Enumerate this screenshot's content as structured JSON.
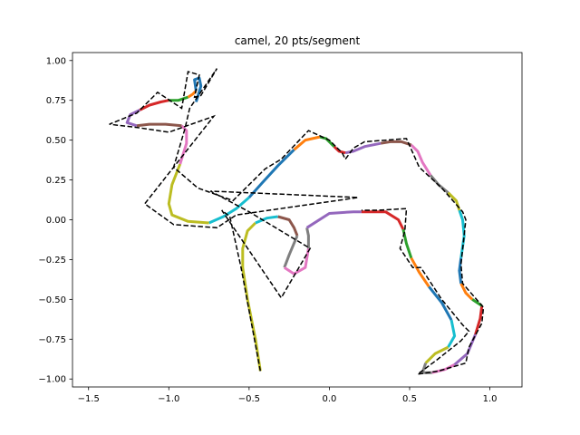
{
  "chart_data": {
    "type": "line",
    "title": "camel, 20 pts/segment",
    "xlabel": "",
    "ylabel": "",
    "xlim": [
      -1.6,
      1.2
    ],
    "ylim": [
      -1.05,
      1.05
    ],
    "x_ticks": [
      -1.5,
      -1.0,
      -0.5,
      0.0,
      0.5,
      1.0
    ],
    "x_tick_labels": [
      "−1.5",
      "−1.0",
      "−0.5",
      "0.0",
      "0.5",
      "1.0"
    ],
    "y_ticks": [
      -1.0,
      -0.75,
      -0.5,
      -0.25,
      0.0,
      0.25,
      0.5,
      0.75,
      1.0
    ],
    "y_tick_labels": [
      "−1.00",
      "−0.75",
      "−0.50",
      "−0.25",
      "0.00",
      "0.25",
      "0.50",
      "0.75",
      "1.00"
    ],
    "grid": false,
    "legend": "none",
    "palette": [
      "#1f77b4",
      "#ff7f0e",
      "#2ca02c",
      "#d62728",
      "#9467bd",
      "#8c564b",
      "#e377c2",
      "#7f7f7f",
      "#bcbd22",
      "#17becf"
    ],
    "control_polygon": {
      "style": "dashed",
      "color": "#000000",
      "points": [
        [
          -0.43,
          -0.95
        ],
        [
          -0.55,
          -0.3
        ],
        [
          -0.62,
          0.02
        ],
        [
          -0.67,
          0.06
        ],
        [
          -0.3,
          -0.49
        ],
        [
          -0.12,
          -0.18
        ],
        [
          -0.5,
          0.05
        ],
        [
          -0.74,
          0.18
        ],
        [
          0.18,
          0.14
        ],
        [
          -0.58,
          0.03
        ],
        [
          -0.7,
          -0.05
        ],
        [
          -0.97,
          -0.03
        ],
        [
          -1.15,
          0.1
        ],
        [
          -0.72,
          0.65
        ],
        [
          -1.0,
          0.55
        ],
        [
          -1.2,
          0.58
        ],
        [
          -1.37,
          0.6
        ],
        [
          -1.2,
          0.67
        ],
        [
          -1.07,
          0.8
        ],
        [
          -0.92,
          0.7
        ],
        [
          -0.88,
          0.93
        ],
        [
          -0.81,
          0.91
        ],
        [
          -0.84,
          0.77
        ],
        [
          -0.8,
          0.78
        ],
        [
          -0.7,
          0.95
        ],
        [
          -0.87,
          0.7
        ],
        [
          -0.9,
          0.57
        ],
        [
          -0.97,
          0.33
        ],
        [
          -0.82,
          0.2
        ],
        [
          -0.6,
          0.12
        ],
        [
          -0.4,
          0.32
        ],
        [
          -0.3,
          0.38
        ],
        [
          -0.13,
          0.56
        ],
        [
          0.0,
          0.5
        ],
        [
          0.08,
          0.42
        ],
        [
          0.1,
          0.38
        ],
        [
          0.15,
          0.45
        ],
        [
          0.22,
          0.49
        ],
        [
          0.48,
          0.51
        ],
        [
          0.56,
          0.33
        ],
        [
          0.7,
          0.2
        ],
        [
          0.83,
          0.05
        ],
        [
          0.85,
          0.0
        ],
        [
          0.82,
          -0.28
        ],
        [
          0.83,
          -0.4
        ],
        [
          0.96,
          -0.55
        ],
        [
          0.95,
          -0.65
        ],
        [
          0.87,
          -0.8
        ],
        [
          0.85,
          -0.9
        ],
        [
          0.68,
          -0.95
        ],
        [
          0.55,
          -0.97
        ],
        [
          0.67,
          -0.88
        ],
        [
          0.82,
          -0.76
        ],
        [
          0.87,
          -0.7
        ],
        [
          0.83,
          -0.66
        ],
        [
          0.7,
          -0.5
        ],
        [
          0.57,
          -0.3
        ],
        [
          0.52,
          -0.3
        ],
        [
          0.44,
          -0.18
        ],
        [
          0.47,
          -0.07
        ],
        [
          0.48,
          0.07
        ],
        [
          0.3,
          0.06
        ],
        [
          0.2,
          0.06
        ]
      ]
    },
    "series": [
      {
        "color_index": 8,
        "values": [
          [
            -0.43,
            -0.95
          ],
          [
            -0.46,
            -0.75
          ],
          [
            -0.51,
            -0.5
          ],
          [
            -0.54,
            -0.3
          ],
          [
            -0.54,
            -0.18
          ],
          [
            -0.51,
            -0.07
          ],
          [
            -0.46,
            -0.02
          ]
        ]
      },
      {
        "color_index": 9,
        "values": [
          [
            -0.46,
            -0.02
          ],
          [
            -0.39,
            0.01
          ],
          [
            -0.32,
            0.02
          ]
        ]
      },
      {
        "color_index": 5,
        "values": [
          [
            -0.32,
            0.02
          ],
          [
            -0.25,
            0.0
          ],
          [
            -0.22,
            -0.05
          ],
          [
            -0.2,
            -0.1
          ]
        ]
      },
      {
        "color_index": 7,
        "values": [
          [
            -0.2,
            -0.1
          ],
          [
            -0.25,
            -0.22
          ],
          [
            -0.28,
            -0.3
          ]
        ]
      },
      {
        "color_index": 6,
        "values": [
          [
            -0.28,
            -0.3
          ],
          [
            -0.22,
            -0.34
          ],
          [
            -0.15,
            -0.3
          ],
          [
            -0.13,
            -0.18
          ]
        ]
      },
      {
        "color_index": 7,
        "values": [
          [
            -0.13,
            -0.18
          ],
          [
            -0.13,
            -0.1
          ],
          [
            -0.14,
            -0.05
          ]
        ]
      },
      {
        "color_index": 4,
        "values": [
          [
            -0.14,
            -0.05
          ],
          [
            0.0,
            0.04
          ],
          [
            0.15,
            0.05
          ],
          [
            0.2,
            0.05
          ]
        ]
      },
      {
        "color_index": 3,
        "values": [
          [
            0.2,
            0.05
          ],
          [
            0.35,
            0.05
          ],
          [
            0.43,
            0.0
          ],
          [
            0.46,
            -0.06
          ]
        ]
      },
      {
        "color_index": 2,
        "values": [
          [
            0.46,
            -0.06
          ],
          [
            0.48,
            -0.15
          ],
          [
            0.51,
            -0.24
          ]
        ]
      },
      {
        "color_index": 1,
        "values": [
          [
            0.51,
            -0.24
          ],
          [
            0.56,
            -0.33
          ],
          [
            0.62,
            -0.42
          ]
        ]
      },
      {
        "color_index": 0,
        "values": [
          [
            0.62,
            -0.42
          ],
          [
            0.7,
            -0.52
          ],
          [
            0.76,
            -0.63
          ]
        ]
      },
      {
        "color_index": 9,
        "values": [
          [
            0.76,
            -0.63
          ],
          [
            0.78,
            -0.73
          ],
          [
            0.74,
            -0.8
          ]
        ]
      },
      {
        "color_index": 8,
        "values": [
          [
            0.74,
            -0.8
          ],
          [
            0.66,
            -0.84
          ],
          [
            0.6,
            -0.9
          ]
        ]
      },
      {
        "color_index": 7,
        "values": [
          [
            0.6,
            -0.9
          ],
          [
            0.58,
            -0.96
          ],
          [
            0.64,
            -0.96
          ]
        ]
      },
      {
        "color_index": 6,
        "values": [
          [
            0.64,
            -0.96
          ],
          [
            0.72,
            -0.94
          ],
          [
            0.78,
            -0.91
          ]
        ]
      },
      {
        "color_index": 4,
        "values": [
          [
            0.78,
            -0.91
          ],
          [
            0.86,
            -0.84
          ],
          [
            0.91,
            -0.72
          ]
        ]
      },
      {
        "color_index": 3,
        "values": [
          [
            0.91,
            -0.72
          ],
          [
            0.94,
            -0.62
          ],
          [
            0.95,
            -0.54
          ]
        ]
      },
      {
        "color_index": 2,
        "values": [
          [
            0.95,
            -0.54
          ],
          [
            0.92,
            -0.52
          ],
          [
            0.89,
            -0.5
          ]
        ]
      },
      {
        "color_index": 1,
        "values": [
          [
            0.89,
            -0.5
          ],
          [
            0.85,
            -0.46
          ],
          [
            0.82,
            -0.4
          ]
        ]
      },
      {
        "color_index": 0,
        "values": [
          [
            0.82,
            -0.4
          ],
          [
            0.81,
            -0.32
          ],
          [
            0.82,
            -0.24
          ]
        ]
      },
      {
        "color_index": 9,
        "values": [
          [
            0.82,
            -0.24
          ],
          [
            0.84,
            -0.1
          ],
          [
            0.83,
            0.0
          ],
          [
            0.81,
            0.06
          ]
        ]
      },
      {
        "color_index": 8,
        "values": [
          [
            0.81,
            0.06
          ],
          [
            0.79,
            0.12
          ],
          [
            0.74,
            0.17
          ]
        ]
      },
      {
        "color_index": 7,
        "values": [
          [
            0.74,
            0.17
          ],
          [
            0.68,
            0.22
          ],
          [
            0.63,
            0.28
          ]
        ]
      },
      {
        "color_index": 6,
        "values": [
          [
            0.63,
            0.28
          ],
          [
            0.58,
            0.36
          ],
          [
            0.55,
            0.43
          ],
          [
            0.51,
            0.47
          ]
        ]
      },
      {
        "color_index": 5,
        "values": [
          [
            0.51,
            0.47
          ],
          [
            0.45,
            0.49
          ],
          [
            0.38,
            0.49
          ],
          [
            0.32,
            0.48
          ]
        ]
      },
      {
        "color_index": 4,
        "values": [
          [
            0.32,
            0.48
          ],
          [
            0.22,
            0.46
          ],
          [
            0.15,
            0.43
          ],
          [
            0.1,
            0.42
          ]
        ]
      },
      {
        "color_index": 3,
        "values": [
          [
            0.1,
            0.42
          ],
          [
            0.06,
            0.43
          ],
          [
            0.03,
            0.46
          ]
        ]
      },
      {
        "color_index": 2,
        "values": [
          [
            0.03,
            0.46
          ],
          [
            -0.02,
            0.51
          ],
          [
            -0.06,
            0.52
          ]
        ]
      },
      {
        "color_index": 1,
        "values": [
          [
            -0.06,
            0.52
          ],
          [
            -0.15,
            0.5
          ],
          [
            -0.22,
            0.44
          ]
        ]
      },
      {
        "color_index": 0,
        "values": [
          [
            -0.22,
            0.44
          ],
          [
            -0.32,
            0.34
          ],
          [
            -0.42,
            0.23
          ],
          [
            -0.5,
            0.14
          ]
        ]
      },
      {
        "color_index": 9,
        "values": [
          [
            -0.5,
            0.14
          ],
          [
            -0.58,
            0.07
          ],
          [
            -0.66,
            0.02
          ],
          [
            -0.75,
            -0.02
          ]
        ]
      },
      {
        "color_index": 8,
        "values": [
          [
            -0.75,
            -0.02
          ],
          [
            -0.88,
            -0.01
          ],
          [
            -0.98,
            0.03
          ],
          [
            -1.0,
            0.1
          ],
          [
            -0.98,
            0.22
          ],
          [
            -0.93,
            0.35
          ]
        ]
      },
      {
        "color_index": 6,
        "values": [
          [
            -0.93,
            0.35
          ],
          [
            -0.89,
            0.48
          ],
          [
            -0.89,
            0.56
          ],
          [
            -0.92,
            0.59
          ]
        ]
      },
      {
        "color_index": 5,
        "values": [
          [
            -0.92,
            0.59
          ],
          [
            -1.02,
            0.6
          ],
          [
            -1.12,
            0.6
          ],
          [
            -1.2,
            0.59
          ]
        ]
      },
      {
        "color_index": 4,
        "values": [
          [
            -1.2,
            0.59
          ],
          [
            -1.26,
            0.61
          ],
          [
            -1.24,
            0.66
          ],
          [
            -1.18,
            0.69
          ]
        ]
      },
      {
        "color_index": 3,
        "values": [
          [
            -1.18,
            0.69
          ],
          [
            -1.12,
            0.72
          ],
          [
            -1.05,
            0.74
          ],
          [
            -1.0,
            0.75
          ]
        ]
      },
      {
        "color_index": 2,
        "values": [
          [
            -1.0,
            0.75
          ],
          [
            -0.94,
            0.75
          ],
          [
            -0.88,
            0.77
          ]
        ]
      },
      {
        "color_index": 1,
        "values": [
          [
            -0.88,
            0.77
          ],
          [
            -0.85,
            0.79
          ],
          [
            -0.83,
            0.81
          ]
        ]
      },
      {
        "color_index": 0,
        "values": [
          [
            -0.83,
            0.81
          ],
          [
            -0.84,
            0.88
          ],
          [
            -0.81,
            0.89
          ],
          [
            -0.8,
            0.84
          ],
          [
            -0.83,
            0.74
          ]
        ]
      }
    ]
  }
}
